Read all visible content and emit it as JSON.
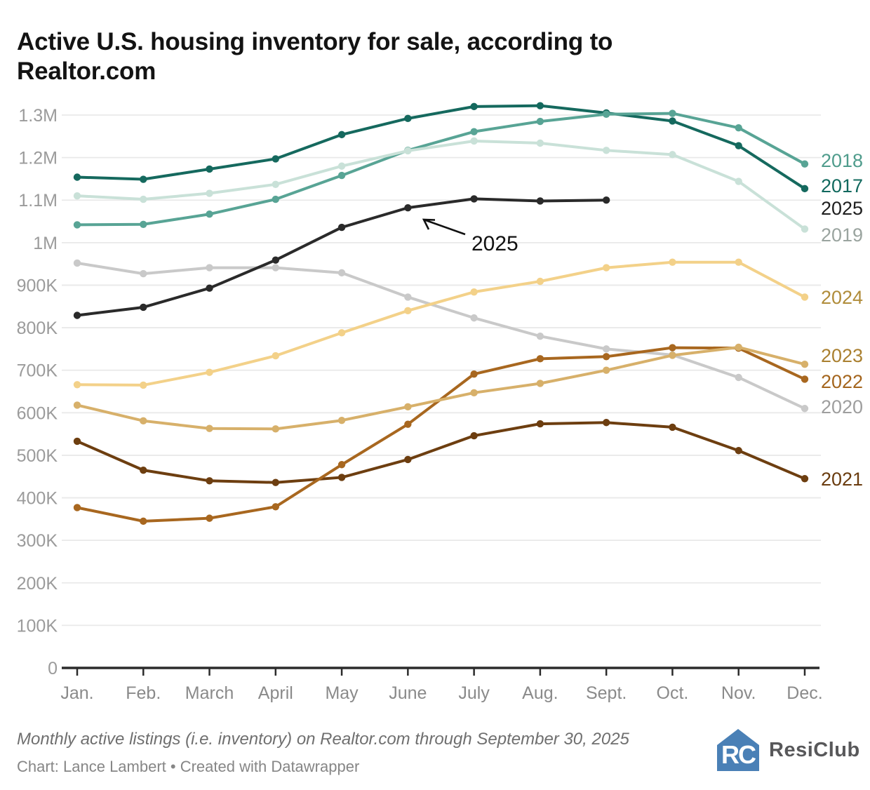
{
  "title": "Active U.S. housing inventory for sale, according to Realtor.com",
  "annotation": {
    "label": "2025"
  },
  "footer": {
    "note": "Monthly active listings (i.e. inventory) on Realtor.com through September 30, 2025",
    "credit": "Chart: Lance Lambert • Created with Datawrapper"
  },
  "logo": {
    "monogram": "RC",
    "text": "ResiClub",
    "house_color": "#4a80b6",
    "text_color": "#58585a"
  },
  "chart_data": {
    "type": "line",
    "unit": "active listings",
    "x_labels": [
      "Jan.",
      "Feb.",
      "March",
      "April",
      "May",
      "June",
      "July",
      "Aug.",
      "Sept.",
      "Oct.",
      "Nov.",
      "Dec."
    ],
    "y_ticks": [
      "0",
      "100K",
      "200K",
      "300K",
      "400K",
      "500K",
      "600K",
      "700K",
      "800K",
      "900K",
      "1M",
      "1.1M",
      "1.2M",
      "1.3M"
    ],
    "ylim": [
      0,
      1300000
    ],
    "grid": "horizontal",
    "legend_position": "right-edge-labels",
    "series": [
      {
        "name": "2017",
        "color": "#15695e",
        "label_color": "#11695e",
        "values": [
          1154000,
          1149000,
          1173000,
          1197000,
          1254000,
          1292000,
          1320000,
          1322000,
          1305000,
          1286000,
          1228000,
          1127000
        ]
      },
      {
        "name": "2018",
        "color": "#58a495",
        "label_color": "#4f9c8c",
        "values": [
          1042000,
          1043000,
          1067000,
          1102000,
          1158000,
          1217000,
          1261000,
          1285000,
          1302000,
          1304000,
          1270000,
          1185000
        ]
      },
      {
        "name": "2019",
        "color": "#c9e1d8",
        "label_color": "#9aa49f",
        "values": [
          1110000,
          1102000,
          1116000,
          1137000,
          1180000,
          1216000,
          1239000,
          1234000,
          1217000,
          1207000,
          1144000,
          1032000
        ]
      },
      {
        "name": "2020",
        "color": "#c9c9c9",
        "label_color": "#9e9e9e",
        "values": [
          952000,
          927000,
          941000,
          941000,
          929000,
          872000,
          823000,
          780000,
          750000,
          736000,
          683000,
          610000
        ]
      },
      {
        "name": "2021",
        "color": "#6d3e10",
        "label_color": "#6a3c0f",
        "values": [
          533000,
          465000,
          440000,
          436000,
          448000,
          490000,
          546000,
          574000,
          577000,
          566000,
          511000,
          445000
        ]
      },
      {
        "name": "2022",
        "color": "#a8671f",
        "label_color": "#a4651d",
        "values": [
          377000,
          345000,
          352000,
          379000,
          478000,
          573000,
          691000,
          727000,
          732000,
          753000,
          752000,
          679000
        ]
      },
      {
        "name": "2023",
        "color": "#d7b06a",
        "label_color": "#aa8030",
        "values": [
          618000,
          581000,
          563000,
          562000,
          582000,
          614000,
          647000,
          669000,
          700000,
          735000,
          754000,
          714000
        ]
      },
      {
        "name": "2024",
        "color": "#f3d189",
        "label_color": "#b08c3a",
        "values": [
          666000,
          665000,
          695000,
          734000,
          788000,
          840000,
          884000,
          909000,
          941000,
          954000,
          954000,
          872000
        ]
      },
      {
        "name": "2025",
        "color": "#2a2a2a",
        "label_color": "#1e1e1e",
        "values": [
          829000,
          848000,
          893000,
          959000,
          1036000,
          1082000,
          1103000,
          1098000,
          1100000
        ]
      }
    ]
  }
}
